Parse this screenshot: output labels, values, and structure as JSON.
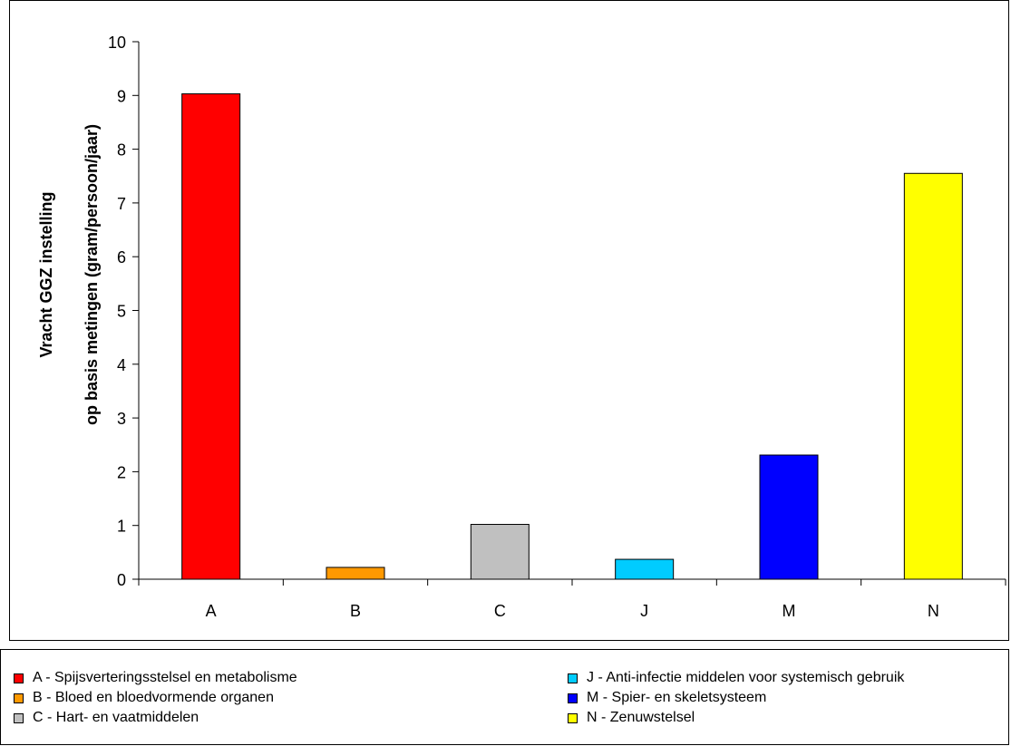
{
  "chart_data": {
    "type": "bar",
    "ylabel_lines": [
      "Vracht GGZ instelling",
      "op basis metingen (gram/persoon/jaar)"
    ],
    "xlabel": "",
    "ylim": [
      0,
      10
    ],
    "yticks": [
      0,
      1,
      2,
      3,
      4,
      5,
      6,
      7,
      8,
      9,
      10
    ],
    "grid": false,
    "legend_position": "bottom",
    "categories": [
      "A",
      "B",
      "C",
      "J",
      "M",
      "N"
    ],
    "values": [
      9.03,
      0.22,
      1.02,
      0.37,
      2.31,
      7.55
    ],
    "colors": [
      "#FF0000",
      "#FF9900",
      "#C0C0C0",
      "#00CCFF",
      "#0000FF",
      "#FFFF00"
    ],
    "legend": [
      {
        "label": "A - Spijsverteringsstelsel en metabolisme",
        "color": "#FF0000"
      },
      {
        "label": "B - Bloed en bloedvormende organen",
        "color": "#FF9900"
      },
      {
        "label": "C - Hart- en vaatmiddelen",
        "color": "#C0C0C0"
      },
      {
        "label": "J - Anti-infectie middelen voor systemisch gebruik",
        "color": "#00CCFF"
      },
      {
        "label": "M - Spier- en skeletsysteem",
        "color": "#0000FF"
      },
      {
        "label": "N - Zenuwstelsel",
        "color": "#FFFF00"
      }
    ]
  }
}
